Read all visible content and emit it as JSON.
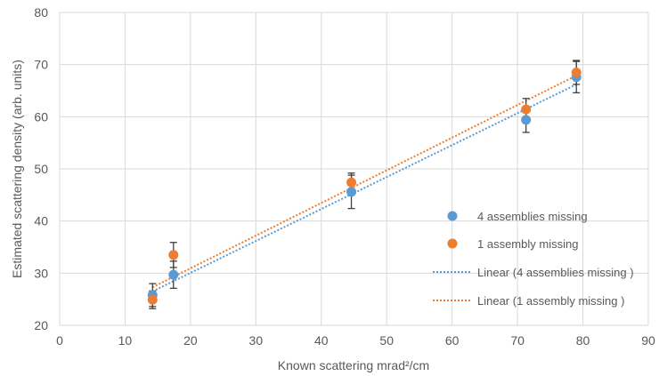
{
  "chart_data": {
    "type": "scatter",
    "xlabel": "Known scattering mrad²/cm",
    "ylabel": "Estimated scattering density (arb.  units)",
    "xlim": [
      0,
      90
    ],
    "ylim": [
      20,
      80
    ],
    "xticks": [
      "0",
      "10",
      "20",
      "30",
      "40",
      "50",
      "60",
      "70",
      "80",
      "90"
    ],
    "yticks": [
      "20",
      "30",
      "40",
      "50",
      "60",
      "70",
      "80"
    ],
    "grid": true,
    "legend_position": "right",
    "series": [
      {
        "name": "4 assemblies missing",
        "color": "#5b9bd5",
        "x": [
          14.2,
          17.4,
          44.6,
          71.3,
          79.0
        ],
        "y": [
          25.8,
          29.7,
          45.6,
          59.4,
          67.6
        ],
        "err": [
          2.2,
          2.6,
          3.2,
          2.4,
          3.0
        ]
      },
      {
        "name": "1 assembly missing",
        "color": "#ed7d31",
        "x": [
          14.2,
          17.4,
          44.6,
          71.3,
          79.0
        ],
        "y": [
          24.9,
          33.5,
          47.4,
          61.4,
          68.5
        ],
        "err": [
          1.7,
          2.4,
          1.8,
          2.1,
          2.3
        ]
      }
    ],
    "trendlines": [
      {
        "name": "Linear (4 assemblies missing )",
        "color": "#5b9bd5",
        "x": [
          14.2,
          79.0
        ],
        "y": [
          26.5,
          66.2
        ]
      },
      {
        "name": "Linear (1 assembly missing )",
        "color": "#ed7d31",
        "x": [
          14.2,
          79.0
        ],
        "y": [
          27.3,
          67.9
        ]
      }
    ]
  }
}
